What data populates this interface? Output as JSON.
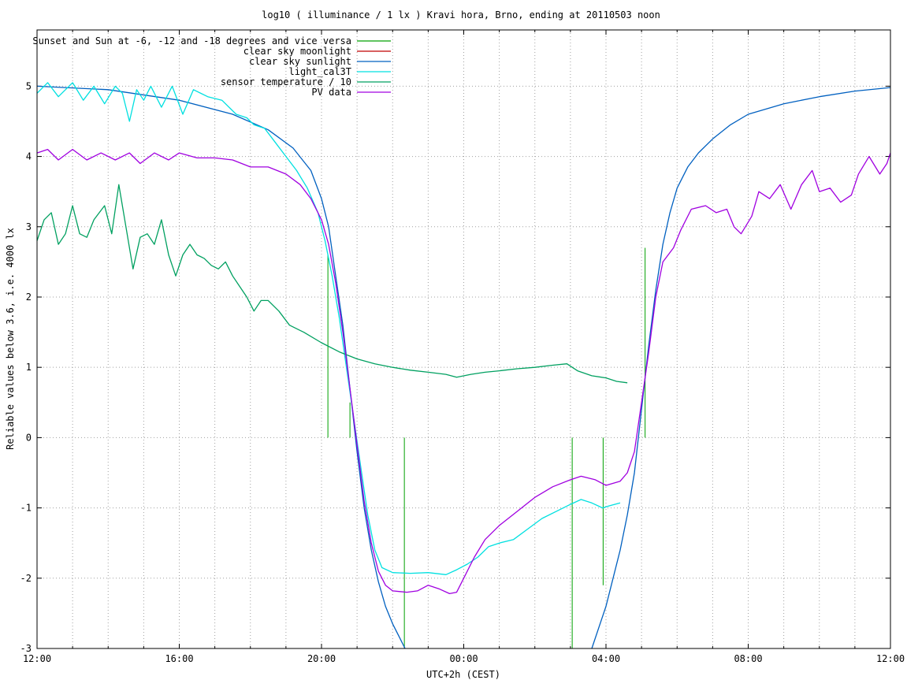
{
  "chart_data": {
    "type": "line",
    "title": "log10 ( illuminance / 1 lx ) Kravi hora, Brno, ending at 20110503 noon",
    "xlabel": "UTC+2h (CEST)",
    "ylabel": "Reliable values below 3.6, i.e. 4000 lx",
    "x_unit": "hours",
    "xlim": [
      12,
      36
    ],
    "ylim": [
      -3,
      5.8
    ],
    "x_ticks": [
      {
        "x": 12,
        "label": "12:00"
      },
      {
        "x": 16,
        "label": "16:00"
      },
      {
        "x": 20,
        "label": "20:00"
      },
      {
        "x": 24,
        "label": "00:00"
      },
      {
        "x": 28,
        "label": "04:00"
      },
      {
        "x": 32,
        "label": "08:00"
      },
      {
        "x": 36,
        "label": "12:00"
      }
    ],
    "x_minor_step": 1,
    "y_ticks": [
      {
        "y": -3,
        "label": "-3"
      },
      {
        "y": -2,
        "label": "-2"
      },
      {
        "y": -1,
        "label": "-1"
      },
      {
        "y": 0,
        "label": "0"
      },
      {
        "y": 1,
        "label": "1"
      },
      {
        "y": 2,
        "label": "2"
      },
      {
        "y": 3,
        "label": "3"
      },
      {
        "y": 4,
        "label": "4"
      },
      {
        "y": 5,
        "label": "5"
      }
    ],
    "grid": true,
    "legend_position": "top-left",
    "series": [
      {
        "name": "Sunset and Sun at -6, -12 and -18 degrees and vice versa",
        "color": "#00a000",
        "kind": "impulses",
        "points": [
          [
            20.18,
            2.6
          ],
          [
            20.8,
            0.5
          ],
          [
            21.42,
            0
          ],
          [
            22.33,
            -3.0
          ],
          [
            27.05,
            -3.0
          ],
          [
            27.92,
            -2.1
          ],
          [
            29.1,
            2.7
          ]
        ]
      },
      {
        "name": "clear sky moonlight",
        "color": "#c00000",
        "kind": "line",
        "points": []
      },
      {
        "name": "clear sky sunlight",
        "color": "#0060c0",
        "kind": "line",
        "points": [
          [
            12.0,
            5.0
          ],
          [
            14.0,
            4.95
          ],
          [
            16.0,
            4.8
          ],
          [
            17.5,
            4.6
          ],
          [
            18.5,
            4.38
          ],
          [
            19.2,
            4.12
          ],
          [
            19.7,
            3.8
          ],
          [
            20.0,
            3.4
          ],
          [
            20.2,
            3.0
          ],
          [
            20.4,
            2.3
          ],
          [
            20.6,
            1.6
          ],
          [
            20.8,
            0.7
          ],
          [
            21.0,
            -0.2
          ],
          [
            21.2,
            -1.0
          ],
          [
            21.4,
            -1.6
          ],
          [
            21.6,
            -2.05
          ],
          [
            21.8,
            -2.4
          ],
          [
            22.0,
            -2.65
          ],
          [
            22.2,
            -2.85
          ],
          [
            22.35,
            -3.0
          ]
        ]
      },
      {
        "name": "clear sky sunlight (morning)",
        "color": "#0060c0",
        "kind": "line",
        "legend": false,
        "points": [
          [
            27.6,
            -3.0
          ],
          [
            27.8,
            -2.7
          ],
          [
            28.0,
            -2.4
          ],
          [
            28.2,
            -2.0
          ],
          [
            28.4,
            -1.6
          ],
          [
            28.6,
            -1.1
          ],
          [
            28.8,
            -0.5
          ],
          [
            29.0,
            0.4
          ],
          [
            29.2,
            1.3
          ],
          [
            29.4,
            2.1
          ],
          [
            29.6,
            2.75
          ],
          [
            29.8,
            3.2
          ],
          [
            30.0,
            3.55
          ],
          [
            30.3,
            3.85
          ],
          [
            30.6,
            4.05
          ],
          [
            31.0,
            4.25
          ],
          [
            31.5,
            4.45
          ],
          [
            32.0,
            4.6
          ],
          [
            33.0,
            4.75
          ],
          [
            34.0,
            4.85
          ],
          [
            35.0,
            4.93
          ],
          [
            36.0,
            4.98
          ]
        ]
      },
      {
        "name": "light_cal3T",
        "color": "#00e0e0",
        "kind": "line",
        "points": [
          [
            12.0,
            4.9
          ],
          [
            12.3,
            5.05
          ],
          [
            12.6,
            4.85
          ],
          [
            13.0,
            5.05
          ],
          [
            13.3,
            4.8
          ],
          [
            13.6,
            5.0
          ],
          [
            13.9,
            4.75
          ],
          [
            14.2,
            5.0
          ],
          [
            14.4,
            4.9
          ],
          [
            14.6,
            4.5
          ],
          [
            14.8,
            4.95
          ],
          [
            15.0,
            4.8
          ],
          [
            15.2,
            5.0
          ],
          [
            15.5,
            4.7
          ],
          [
            15.8,
            5.0
          ],
          [
            16.1,
            4.6
          ],
          [
            16.4,
            4.95
          ],
          [
            16.8,
            4.85
          ],
          [
            17.2,
            4.8
          ],
          [
            17.6,
            4.6
          ],
          [
            17.9,
            4.55
          ],
          [
            18.1,
            4.45
          ],
          [
            18.4,
            4.4
          ],
          [
            18.7,
            4.2
          ],
          [
            19.0,
            4.0
          ],
          [
            19.3,
            3.8
          ],
          [
            19.6,
            3.55
          ],
          [
            19.9,
            3.2
          ],
          [
            20.1,
            2.8
          ],
          [
            20.3,
            2.3
          ],
          [
            20.5,
            1.7
          ],
          [
            20.7,
            1.0
          ],
          [
            20.9,
            0.3
          ],
          [
            21.1,
            -0.4
          ],
          [
            21.3,
            -1.1
          ],
          [
            21.5,
            -1.6
          ],
          [
            21.7,
            -1.85
          ],
          [
            22.0,
            -1.92
          ],
          [
            22.5,
            -1.93
          ],
          [
            23.0,
            -1.92
          ],
          [
            23.5,
            -1.95
          ],
          [
            23.8,
            -1.88
          ],
          [
            24.1,
            -1.8
          ],
          [
            24.4,
            -1.7
          ],
          [
            24.7,
            -1.55
          ],
          [
            25.0,
            -1.5
          ],
          [
            25.4,
            -1.45
          ],
          [
            25.8,
            -1.3
          ],
          [
            26.2,
            -1.15
          ],
          [
            26.6,
            -1.05
          ],
          [
            27.0,
            -0.95
          ],
          [
            27.3,
            -0.88
          ],
          [
            27.6,
            -0.93
          ],
          [
            27.9,
            -1.0
          ],
          [
            28.1,
            -0.97
          ],
          [
            28.4,
            -0.93
          ]
        ]
      },
      {
        "name": "sensor temperature / 10",
        "color": "#00a060",
        "kind": "line",
        "points": [
          [
            12.0,
            2.8
          ],
          [
            12.2,
            3.1
          ],
          [
            12.4,
            3.2
          ],
          [
            12.6,
            2.75
          ],
          [
            12.8,
            2.9
          ],
          [
            13.0,
            3.3
          ],
          [
            13.2,
            2.9
          ],
          [
            13.4,
            2.85
          ],
          [
            13.6,
            3.1
          ],
          [
            13.9,
            3.3
          ],
          [
            14.1,
            2.9
          ],
          [
            14.3,
            3.6
          ],
          [
            14.5,
            3.0
          ],
          [
            14.7,
            2.4
          ],
          [
            14.9,
            2.85
          ],
          [
            15.1,
            2.9
          ],
          [
            15.3,
            2.75
          ],
          [
            15.5,
            3.1
          ],
          [
            15.7,
            2.6
          ],
          [
            15.9,
            2.3
          ],
          [
            16.1,
            2.6
          ],
          [
            16.3,
            2.75
          ],
          [
            16.5,
            2.6
          ],
          [
            16.7,
            2.55
          ],
          [
            16.9,
            2.45
          ],
          [
            17.1,
            2.4
          ],
          [
            17.3,
            2.5
          ],
          [
            17.5,
            2.3
          ],
          [
            17.7,
            2.15
          ],
          [
            17.9,
            2.0
          ],
          [
            18.1,
            1.8
          ],
          [
            18.3,
            1.95
          ],
          [
            18.5,
            1.95
          ],
          [
            18.8,
            1.8
          ],
          [
            19.1,
            1.6
          ],
          [
            19.5,
            1.5
          ],
          [
            20.0,
            1.35
          ],
          [
            20.5,
            1.22
          ],
          [
            21.0,
            1.12
          ],
          [
            21.5,
            1.05
          ],
          [
            22.0,
            1.0
          ],
          [
            22.5,
            0.96
          ],
          [
            23.0,
            0.93
          ],
          [
            23.5,
            0.9
          ],
          [
            23.8,
            0.86
          ],
          [
            24.2,
            0.9
          ],
          [
            24.6,
            0.93
          ],
          [
            25.0,
            0.95
          ],
          [
            25.5,
            0.98
          ],
          [
            26.0,
            1.0
          ],
          [
            26.5,
            1.03
          ],
          [
            26.9,
            1.05
          ],
          [
            27.2,
            0.95
          ],
          [
            27.6,
            0.88
          ],
          [
            28.0,
            0.85
          ],
          [
            28.3,
            0.8
          ],
          [
            28.6,
            0.78
          ]
        ]
      },
      {
        "name": "PV data",
        "color": "#a000e0",
        "kind": "line",
        "points": [
          [
            12.0,
            4.05
          ],
          [
            12.3,
            4.1
          ],
          [
            12.6,
            3.95
          ],
          [
            13.0,
            4.1
          ],
          [
            13.4,
            3.95
          ],
          [
            13.8,
            4.05
          ],
          [
            14.2,
            3.95
          ],
          [
            14.6,
            4.05
          ],
          [
            14.9,
            3.9
          ],
          [
            15.3,
            4.05
          ],
          [
            15.7,
            3.95
          ],
          [
            16.0,
            4.05
          ],
          [
            16.5,
            3.98
          ],
          [
            17.0,
            3.98
          ],
          [
            17.5,
            3.95
          ],
          [
            18.0,
            3.85
          ],
          [
            18.5,
            3.85
          ],
          [
            19.0,
            3.75
          ],
          [
            19.4,
            3.6
          ],
          [
            19.7,
            3.4
          ],
          [
            20.0,
            3.1
          ],
          [
            20.2,
            2.75
          ],
          [
            20.4,
            2.2
          ],
          [
            20.6,
            1.5
          ],
          [
            20.8,
            0.7
          ],
          [
            21.0,
            -0.1
          ],
          [
            21.2,
            -0.9
          ],
          [
            21.4,
            -1.5
          ],
          [
            21.6,
            -1.9
          ],
          [
            21.8,
            -2.1
          ],
          [
            22.0,
            -2.18
          ],
          [
            22.4,
            -2.2
          ],
          [
            22.7,
            -2.18
          ],
          [
            23.0,
            -2.1
          ],
          [
            23.3,
            -2.15
          ],
          [
            23.6,
            -2.22
          ],
          [
            23.8,
            -2.2
          ],
          [
            24.0,
            -2.0
          ],
          [
            24.3,
            -1.7
          ],
          [
            24.6,
            -1.45
          ],
          [
            25.0,
            -1.25
          ],
          [
            25.5,
            -1.05
          ],
          [
            26.0,
            -0.85
          ],
          [
            26.5,
            -0.7
          ],
          [
            27.0,
            -0.6
          ],
          [
            27.3,
            -0.55
          ],
          [
            27.7,
            -0.6
          ],
          [
            28.0,
            -0.68
          ],
          [
            28.4,
            -0.62
          ],
          [
            28.6,
            -0.5
          ],
          [
            28.8,
            -0.2
          ],
          [
            29.0,
            0.5
          ],
          [
            29.2,
            1.2
          ],
          [
            29.4,
            2.0
          ],
          [
            29.6,
            2.5
          ],
          [
            29.9,
            2.7
          ],
          [
            30.1,
            2.95
          ],
          [
            30.4,
            3.25
          ],
          [
            30.8,
            3.3
          ],
          [
            31.1,
            3.2
          ],
          [
            31.4,
            3.25
          ],
          [
            31.6,
            3.0
          ],
          [
            31.8,
            2.9
          ],
          [
            32.1,
            3.15
          ],
          [
            32.3,
            3.5
          ],
          [
            32.6,
            3.4
          ],
          [
            32.9,
            3.6
          ],
          [
            33.2,
            3.25
          ],
          [
            33.5,
            3.6
          ],
          [
            33.8,
            3.8
          ],
          [
            34.0,
            3.5
          ],
          [
            34.3,
            3.55
          ],
          [
            34.6,
            3.35
          ],
          [
            34.9,
            3.45
          ],
          [
            35.1,
            3.75
          ],
          [
            35.4,
            4.0
          ],
          [
            35.7,
            3.75
          ],
          [
            35.9,
            3.9
          ],
          [
            36.0,
            4.05
          ]
        ]
      }
    ]
  }
}
